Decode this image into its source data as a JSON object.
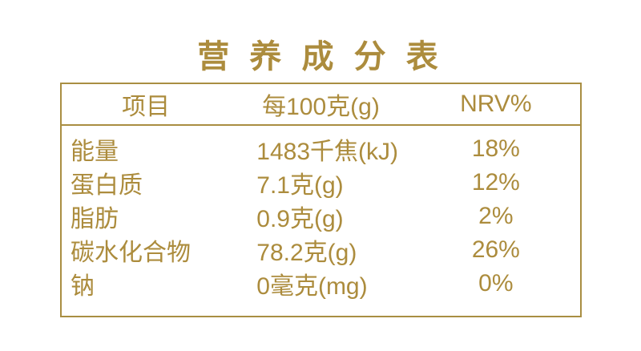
{
  "page": {
    "title": "营 养 成 分 表"
  },
  "colors": {
    "gold_text": "#AC8C3D",
    "gold_border": "#A98E42",
    "background": "#FFFFFF"
  },
  "table": {
    "headers": {
      "item": "项目",
      "per_100g": "每100克(g)",
      "nrv": "NRV%"
    },
    "rows": [
      {
        "item": "能量",
        "value": "1483千焦(kJ)",
        "nrv": "18%"
      },
      {
        "item": "蛋白质",
        "value": "7.1克(g)",
        "nrv": "12%"
      },
      {
        "item": "脂肪",
        "value": "0.9克(g)",
        "nrv": "2%"
      },
      {
        "item": "碳水化合物",
        "value": "78.2克(g)",
        "nrv": "26%"
      },
      {
        "item": "钠",
        "value": "0毫克(mg)",
        "nrv": "0%"
      }
    ]
  }
}
